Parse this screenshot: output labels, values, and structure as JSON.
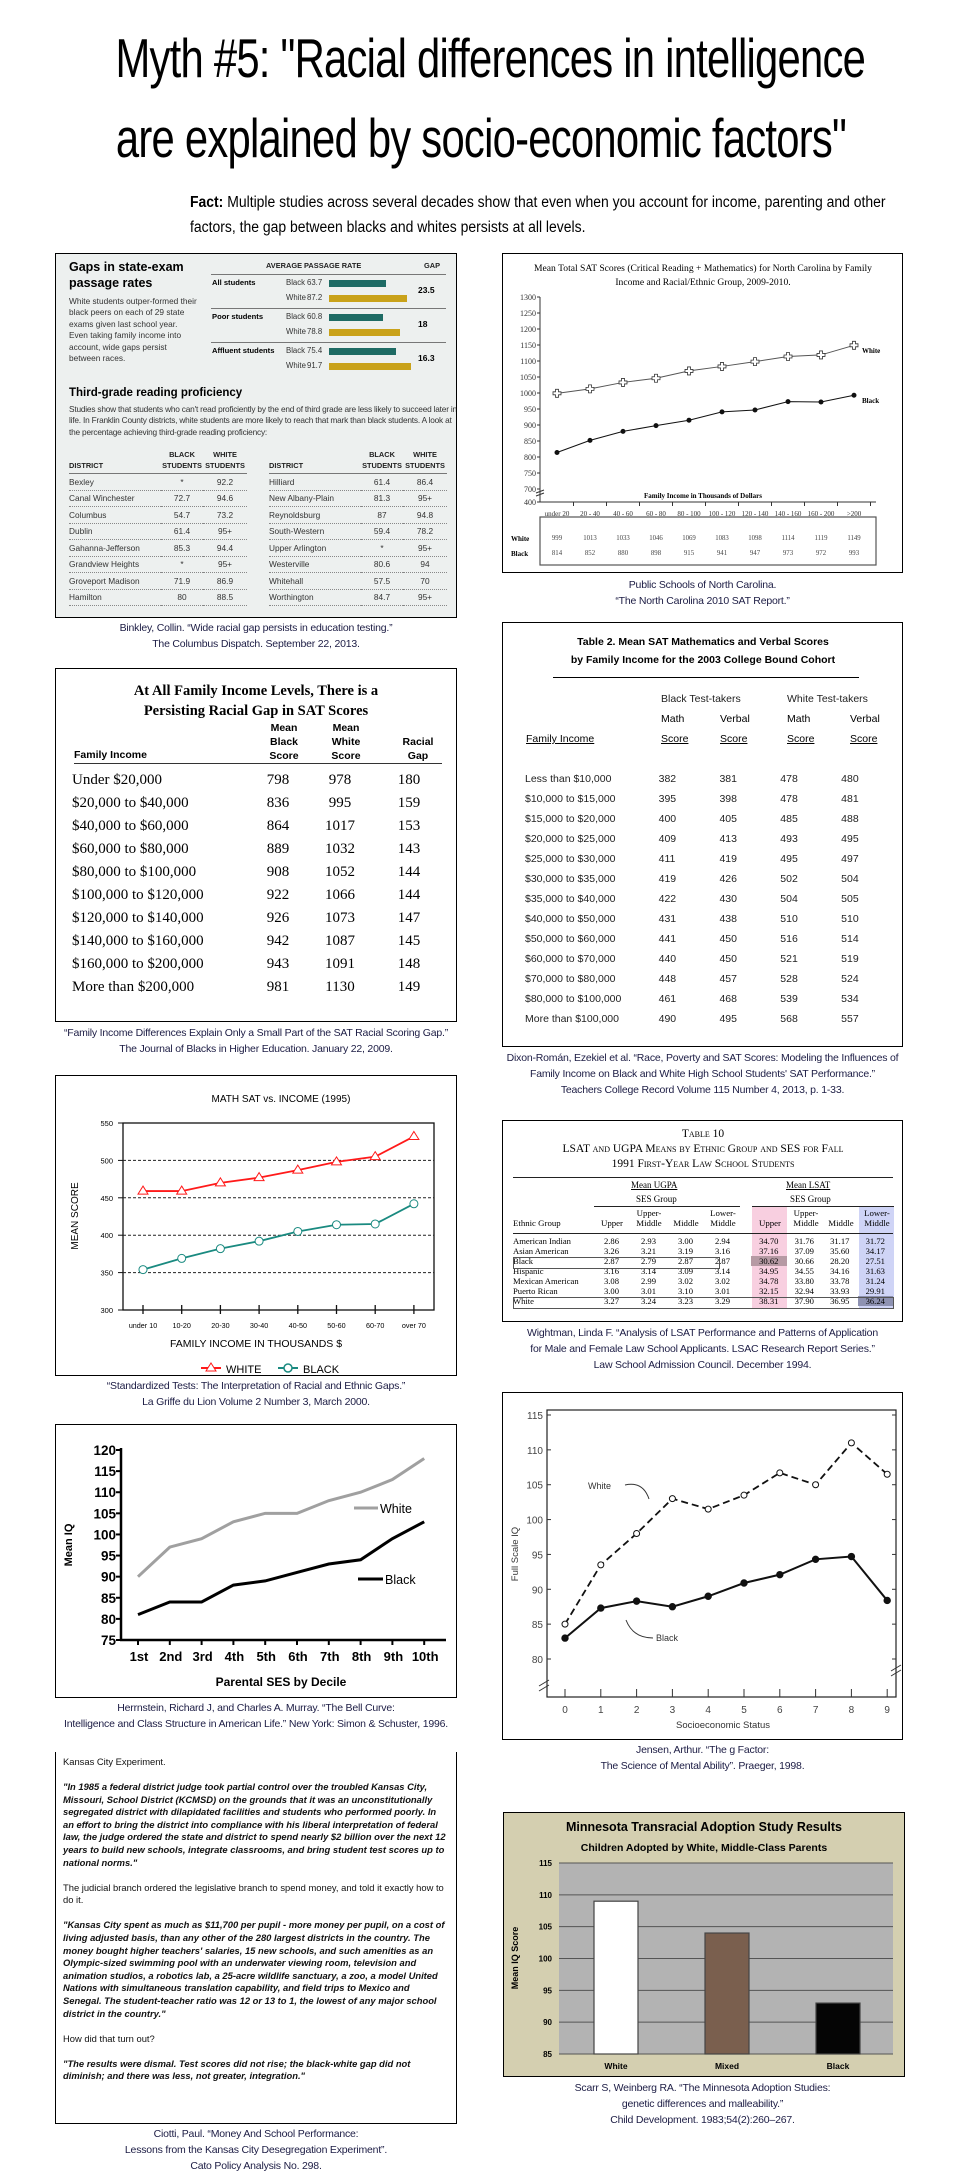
{
  "header": {
    "title_line1": "Myth #5: \"Racial differences in intelligence",
    "title_line2": "are explained by socio-economic factors\"",
    "fact_label": "Fact:",
    "fact_text": " Multiple studies across several decades show that even when you account for income, parenting and other factors, the gap between blacks and whites persists at all levels."
  },
  "columbus": {
    "title": "Gaps in state-exam passage rates",
    "description": "White students outper-formed their black peers on each of 29 state exams given last school year. Even taking family income into account, wide gaps persist between races.",
    "rate_header": "AVERAGE PASSAGE RATE",
    "gap_header": "GAP",
    "bar_colors": {
      "black": "#1e6b64",
      "white": "#c9a21a"
    },
    "groups": [
      {
        "label": "All students",
        "black_label": "Black",
        "black": "63.7",
        "white_label": "White",
        "white": "87.2",
        "gap": "23.5"
      },
      {
        "label": "Poor students",
        "black_label": "Black",
        "black": "60.8",
        "white_label": "White",
        "white": "78.8",
        "gap": "18"
      },
      {
        "label": "Affluent students",
        "black_label": "Black",
        "black": "75.4",
        "white_label": "White",
        "white": "91.7",
        "gap": "16.3"
      }
    ],
    "reading_title": "Third-grade reading proficiency",
    "reading_desc": "Studies show that students who can't read proficiently by the end of third grade are less likely to succeed later in life. In Franklin County districts, white students are more likely to reach that mark than black students. A look at the percentage achieving third-grade reading proficiency:",
    "col_district": "DISTRICT",
    "col_black": "BLACK STUDENTS",
    "col_white": "WHITE STUDENTS",
    "left_rows": [
      [
        "Bexley",
        "*",
        "92.2"
      ],
      [
        "Canal Winchester",
        "72.7",
        "94.6"
      ],
      [
        "Columbus",
        "54.7",
        "73.2"
      ],
      [
        "Dublin",
        "61.4",
        "95+"
      ],
      [
        "Gahanna-Jefferson",
        "85.3",
        "94.4"
      ],
      [
        "Grandview Heights",
        "*",
        "95+"
      ],
      [
        "Groveport Madison",
        "71.9",
        "86.9"
      ],
      [
        "Hamilton",
        "80",
        "88.5"
      ]
    ],
    "right_rows": [
      [
        "Hilliard",
        "61.4",
        "86.4"
      ],
      [
        "New Albany-Plain",
        "81.3",
        "95+"
      ],
      [
        "Reynoldsburg",
        "87",
        "94.8"
      ],
      [
        "South-Western",
        "59.4",
        "78.2"
      ],
      [
        "Upper Arlington",
        "*",
        "95+"
      ],
      [
        "Westerville",
        "80.6",
        "94"
      ],
      [
        "Whitehall",
        "57.5",
        "70"
      ],
      [
        "Worthington",
        "84.7",
        "95+"
      ]
    ],
    "caption": [
      "Binkley, Collin. “Wide racial gap persists in education testing.”",
      "The Columbus Dispatch. September 22, 2013."
    ]
  },
  "sat_gap_table": {
    "title_line1": "At All Family Income Levels, There is a",
    "title_line2": "Persisting Racial Gap in SAT Scores",
    "headers": [
      "Family Income",
      "Mean Black Score",
      "Mean White Score",
      "Racial Gap"
    ],
    "rows": [
      [
        "Under $20,000",
        "798",
        "978",
        "180"
      ],
      [
        "$20,000 to $40,000",
        "836",
        "995",
        "159"
      ],
      [
        "$40,000 to $60,000",
        "864",
        "1017",
        "153"
      ],
      [
        "$60,000 to $80,000",
        "889",
        "1032",
        "143"
      ],
      [
        "$80,000 to $100,000",
        "908",
        "1052",
        "144"
      ],
      [
        "$100,000 to $120,000",
        "922",
        "1066",
        "144"
      ],
      [
        "$120,000 to $140,000",
        "926",
        "1073",
        "147"
      ],
      [
        "$140,000 to $160,000",
        "942",
        "1087",
        "145"
      ],
      [
        "$160,000 to $200,000",
        "943",
        "1091",
        "148"
      ],
      [
        "More than $200,000",
        "981",
        "1130",
        "149"
      ]
    ],
    "caption": [
      "“Family Income Differences Explain Only a Small Part of the SAT Racial Scoring Gap.”",
      "The Journal of Blacks in Higher Education. January 22, 2009."
    ]
  },
  "table2": {
    "title_line1": "Table 2. Mean SAT Mathematics and Verbal Scores",
    "title_line2": "by Family Income for the 2003 College Bound Cohort",
    "group_black": "Black Test-takers",
    "group_white": "White Test-takers",
    "math": "Math",
    "verbal": "Verbal",
    "score": "Score",
    "income_header": "Family Income",
    "rows": [
      [
        "Less than $10,000",
        "382",
        "381",
        "478",
        "480"
      ],
      [
        "$10,000 to $15,000",
        "395",
        "398",
        "478",
        "481"
      ],
      [
        "$15,000 to $20,000",
        "400",
        "405",
        "485",
        "488"
      ],
      [
        "$20,000 to $25,000",
        "409",
        "413",
        "493",
        "495"
      ],
      [
        "$25,000 to $30,000",
        "411",
        "419",
        "495",
        "497"
      ],
      [
        "$30,000 to $35,000",
        "419",
        "426",
        "502",
        "504"
      ],
      [
        "$35,000 to $40,000",
        "422",
        "430",
        "504",
        "505"
      ],
      [
        "$40,000 to $50,000",
        "431",
        "438",
        "510",
        "510"
      ],
      [
        "$50,000 to $60,000",
        "441",
        "450",
        "516",
        "514"
      ],
      [
        "$60,000 to $70,000",
        "440",
        "450",
        "521",
        "519"
      ],
      [
        "$70,000 to $80,000",
        "448",
        "457",
        "528",
        "524"
      ],
      [
        "$80,000 to $100,000",
        "461",
        "468",
        "539",
        "534"
      ],
      [
        "More than $100,000",
        "490",
        "495",
        "568",
        "557"
      ]
    ],
    "caption": [
      "Dixon-Román, Ezekiel et al. “Race, Poverty and SAT Scores: Modeling the Influences of",
      "Family Income on Black and White High School Students' SAT Performance.”",
      "Teachers College Record Volume 115 Number 4, 2013, p. 1-33."
    ]
  },
  "table10": {
    "title_line1": "Table 10",
    "title_line2": "LSAT and UGPA Means by Ethnic Group and SES for Fall",
    "title_line3": "1991 First-Year Law School Students",
    "ugpa_header": "Mean UGPA",
    "lsat_header": "Mean LSAT",
    "ses_group": "SES Group",
    "group_header": "Ethnic Group",
    "ses_cols": [
      "Upper",
      "Upper-Middle",
      "Middle",
      "Lower-Middle"
    ],
    "highlight_colors": {
      "upper_lsat": "#f8cfe0",
      "lower_middle_lsat": "#cfd4f6"
    },
    "rows": [
      [
        "American Indian",
        "2.86",
        "2.93",
        "3.00",
        "2.94",
        "34.70",
        "31.76",
        "31.17",
        "31.72"
      ],
      [
        "Asian American",
        "3.26",
        "3.21",
        "3.19",
        "3.16",
        "37.16",
        "37.09",
        "35.60",
        "34.17"
      ],
      [
        "Black",
        "2.87",
        "2.79",
        "2.87",
        "2.87",
        "30.62",
        "30.66",
        "28.20",
        "27.51"
      ],
      [
        "Hispanic",
        "3.16",
        "3.14",
        "3.09",
        "3.14",
        "34.95",
        "34.55",
        "34.16",
        "31.63"
      ],
      [
        "Mexican American",
        "3.08",
        "2.99",
        "3.02",
        "3.02",
        "34.78",
        "33.80",
        "33.78",
        "31.24"
      ],
      [
        "Puerto Rican",
        "3.00",
        "3.01",
        "3.10",
        "3.01",
        "32.15",
        "32.94",
        "33.93",
        "29.91"
      ],
      [
        "White",
        "3.27",
        "3.24",
        "3.23",
        "3.29",
        "38.31",
        "37.90",
        "36.95",
        "36.24"
      ]
    ],
    "caption": [
      "Wightman, Linda F. “Analysis of LSAT Performance and Patterns of Application",
      "for Male and Female Law School Applicants. LSAC Research Report Series.”",
      "Law School Admission Council. December 1994."
    ]
  },
  "kansas": {
    "heading": "Kansas City Experiment.",
    "quote1": "\"In 1985 a federal district judge took partial control over the troubled Kansas City, Missouri, School District (KCMSD) on the grounds that it was an unconstitutionally segregated district with dilapidated facilities and students who performed poorly. In an effort to bring the district into compliance with his liberal interpretation of federal law, the judge ordered the state and district to spend nearly $2 billion over the next 12 years to build new schools, integrate classrooms, and bring student test scores up to national norms.\"",
    "para2": "The judicial branch ordered the legislative branch to spend money, and told it exactly how to do it.",
    "quote2": "\"Kansas City spent as much as $11,700 per pupil - more money per pupil, on a cost of living adjusted basis, than any other of the 280 largest districts in the country. The money bought higher teachers' salaries, 15 new schools, and such amenities as an Olympic-sized swimming pool with an underwater viewing room, television and animation studios, a robotics lab, a 25-acre wildlife sanctuary, a zoo, a model United Nations with simultaneous translation capability, and field trips to Mexico and Senegal. The student-teacher ratio was 12 or 13 to 1, the lowest of any major school district in the country.\"",
    "para3": "How did that turn out?",
    "quote3": "\"The results were dismal. Test scores did not rise; the black-white gap did not diminish; and there was less, not greater, integration.\"",
    "caption": [
      "Ciotti, Paul. “Money And School Performance:",
      "Lessons from the Kansas City Desegregation Experiment”.",
      "Cato Policy Analysis No. 298."
    ]
  },
  "chart_data": [
    {
      "id": "nc_sat",
      "type": "line",
      "title_line1": "Mean Total SAT Scores (Critical Reading + Mathematics) for North Carolina by Family",
      "title_line2": "Income and Racial/Ethnic Group, 2009-2010.",
      "xlabel": "Family Income in Thousands of Dollars",
      "categories": [
        "under 20",
        "20 - 40",
        "40 - 60",
        "60 - 80",
        "80 - 100",
        "100 - 120",
        "120 - 140",
        "140 - 160",
        "160 - 200",
        ">200"
      ],
      "yticks": [
        "1300",
        "1250",
        "1200",
        "1150",
        "1100",
        "1050",
        "1000",
        "950",
        "900",
        "850",
        "800",
        "750",
        "700",
        "400"
      ],
      "ylim": [
        400,
        1300
      ],
      "axis_break": "700 to 400",
      "series": [
        {
          "name": "White",
          "values": [
            999,
            1013,
            1033,
            1046,
            1069,
            1083,
            1098,
            1114,
            1119,
            1149
          ],
          "marker": "open-cross"
        },
        {
          "name": "Black",
          "values": [
            814,
            852,
            880,
            898,
            915,
            941,
            947,
            973,
            972,
            993
          ],
          "marker": "filled-dot"
        }
      ],
      "caption": [
        "Public Schools of North Carolina.",
        "“The North Carolina 2010 SAT Report.”"
      ]
    },
    {
      "id": "math_sat_1995",
      "type": "line",
      "title": "MATH SAT vs. INCOME (1995)",
      "xlabel": "FAMILY INCOME IN THOUSANDS $",
      "ylabel": "MEAN SCORE",
      "categories": [
        "under 10",
        "10-20",
        "20-30",
        "30-40",
        "40-50",
        "50-60",
        "60-70",
        "over 70"
      ],
      "yticks": [
        "550",
        "500",
        "450",
        "400",
        "350",
        "300"
      ],
      "ylim": [
        300,
        550
      ],
      "grid": "dashed horizontal",
      "legend": "bottom",
      "series": [
        {
          "name": "WHITE",
          "color": "#ff1a1a",
          "marker": "triangle",
          "values": [
            459,
            459,
            470,
            477,
            487,
            498,
            505,
            532
          ]
        },
        {
          "name": "BLACK",
          "color": "#1a8a80",
          "marker": "circle",
          "values": [
            354,
            369,
            382,
            392,
            405,
            414,
            415,
            442
          ]
        }
      ],
      "caption": [
        "“Standardized Tests: The Interpretation of Racial and Ethnic Gaps.”",
        "La Griffe du Lion Volume 2 Number 3, March 2000."
      ]
    },
    {
      "id": "bell_curve",
      "type": "line",
      "xlabel": "Parental SES by Decile",
      "ylabel": "Mean IQ",
      "categories": [
        "1st",
        "2nd",
        "3rd",
        "4th",
        "5th",
        "6th",
        "7th",
        "8th",
        "9th",
        "10th"
      ],
      "yticks": [
        "120",
        "115",
        "110",
        "105",
        "100",
        "95",
        "90",
        "85",
        "80",
        "75"
      ],
      "ylim": [
        75,
        120
      ],
      "legend": "right",
      "series": [
        {
          "name": "White",
          "color": "#a0a0a0",
          "values": [
            90,
            97,
            99,
            103,
            105,
            105,
            108,
            110,
            113,
            118
          ]
        },
        {
          "name": "Black",
          "color": "#000000",
          "values": [
            81,
            84,
            84,
            88,
            89,
            91,
            93,
            94,
            99,
            103
          ]
        }
      ],
      "caption": [
        "Herrnstein, Richard J, and Charles A. Murray. “The Bell Curve:",
        "Intelligence and Class Structure in American Life.” New York: Simon & Schuster, 1996."
      ]
    },
    {
      "id": "jensen",
      "type": "line",
      "xlabel": "Socioeconomic Status",
      "ylabel": "Full Scale IQ",
      "categories": [
        "0",
        "1",
        "2",
        "3",
        "4",
        "5",
        "6",
        "7",
        "8",
        "9"
      ],
      "yticks": [
        "115",
        "110",
        "105",
        "100",
        "95",
        "90",
        "85",
        "80"
      ],
      "ylim": [
        76,
        116
      ],
      "series": [
        {
          "name": "White",
          "style": "dashed",
          "marker": "open-circle",
          "values": [
            85,
            93.5,
            98,
            103,
            101.5,
            103.5,
            106.7,
            105,
            111,
            106.5
          ]
        },
        {
          "name": "Black",
          "style": "solid",
          "marker": "filled-circle",
          "values": [
            83,
            87.3,
            88.3,
            87.5,
            89,
            90.9,
            92.1,
            94.3,
            94.7,
            88.4
          ]
        }
      ],
      "caption": [
        "Jensen, Arthur. “The g Factor:",
        "The Science of Mental Ability”. Praeger, 1998."
      ]
    },
    {
      "id": "minnesota",
      "type": "bar",
      "title": "Minnesota Transracial Adoption Study Results",
      "subtitle": "Children Adopted by White, Middle-Class Parents",
      "ylabel": "Mean IQ Score",
      "categories": [
        "White",
        "Mixed",
        "Black"
      ],
      "values": [
        109,
        104,
        93
      ],
      "colors": [
        "#ffffff",
        "#7a5f4e",
        "#050505"
      ],
      "yticks": [
        "115",
        "110",
        "105",
        "100",
        "95",
        "90",
        "85"
      ],
      "ylim": [
        85,
        115
      ],
      "grid": "horizontal",
      "caption": [
        "Scarr S, Weinberg RA. “The Minnesota Adoption Studies:",
        "genetic differences and malleability.”",
        "Child Development. 1983;54(2):260–267."
      ]
    }
  ]
}
